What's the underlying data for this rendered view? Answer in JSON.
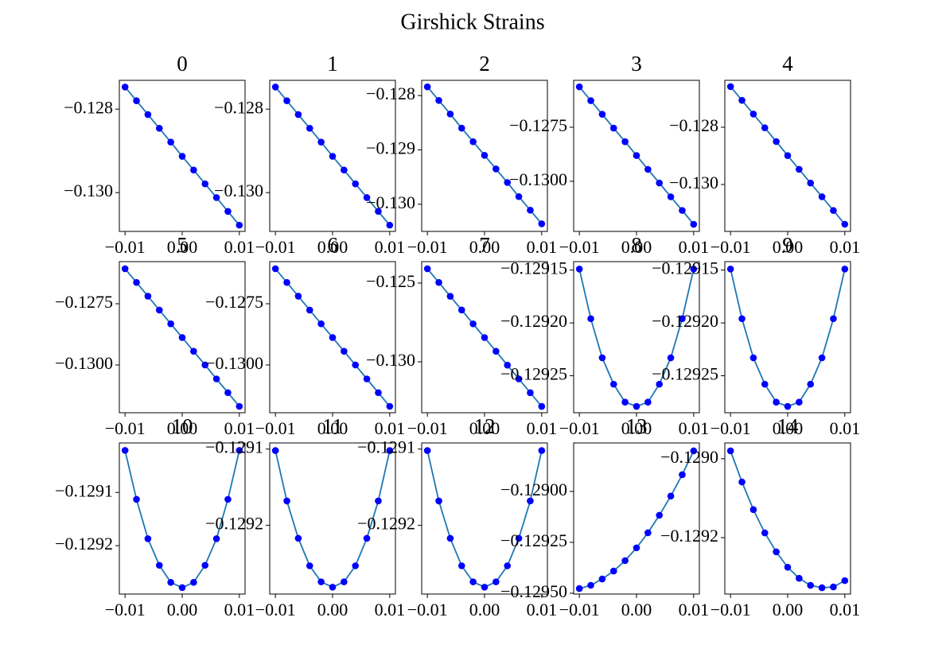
{
  "title": "Girshick Strains",
  "chart_data": [
    {
      "type": "line",
      "title": "0",
      "x": [
        -0.01,
        -0.008,
        -0.006,
        -0.004,
        -0.002,
        0,
        0.002,
        0.004,
        0.006,
        0.008,
        0.01
      ],
      "values": [
        -0.12747,
        -0.1278,
        -0.12813,
        -0.12846,
        -0.12879,
        -0.12913,
        -0.12946,
        -0.12979,
        -0.13012,
        -0.13045,
        -0.13078
      ],
      "color": "#1f77b4",
      "marker_color": "#0000ff",
      "xlim": [
        -0.011,
        0.011
      ],
      "ylim": [
        -0.13093,
        -0.12731
      ],
      "xticks": [
        {
          "value": -0.01,
          "label": "−0.01"
        },
        {
          "value": 0,
          "label": "0.00"
        },
        0.01
      ],
      "yticks": [
        {
          "value": -0.128,
          "label": "−0.128"
        },
        {
          "value": -0.13,
          "label": "−0.130"
        }
      ]
    },
    {
      "type": "line",
      "title": "1",
      "x": [
        -0.01,
        -0.008,
        -0.006,
        -0.004,
        -0.002,
        0,
        0.002,
        0.004,
        0.006,
        0.008,
        0.01
      ],
      "values": [
        -0.12747,
        -0.1278,
        -0.12813,
        -0.12846,
        -0.12879,
        -0.12913,
        -0.12946,
        -0.12979,
        -0.13012,
        -0.13045,
        -0.13078
      ],
      "color": "#1f77b4",
      "marker_color": "#0000ff",
      "xlim": [
        -0.011,
        0.011
      ],
      "ylim": [
        -0.13093,
        -0.12731
      ],
      "xticks": [
        {
          "value": -0.01,
          "label": "−0.01"
        },
        {
          "value": 0,
          "label": "0.00"
        },
        0.01
      ],
      "yticks": [
        {
          "value": -0.128,
          "label": "−0.128"
        },
        {
          "value": -0.13,
          "label": "−0.130"
        }
      ]
    },
    {
      "type": "line",
      "title": "2",
      "x": [
        -0.01,
        -0.008,
        -0.006,
        -0.004,
        -0.002,
        0,
        0.002,
        0.004,
        0.006,
        0.008,
        0.01
      ],
      "values": [
        -0.12784,
        -0.12809,
        -0.12834,
        -0.1286,
        -0.12885,
        -0.1291,
        -0.12935,
        -0.1296,
        -0.12986,
        -0.13011,
        -0.13036
      ],
      "color": "#1f77b4",
      "marker_color": "#0000ff",
      "xlim": [
        -0.011,
        0.011
      ],
      "ylim": [
        -0.1305,
        -0.12772
      ],
      "xticks": [
        {
          "value": -0.01,
          "label": "−0.01"
        },
        {
          "value": 0,
          "label": "0.00"
        },
        0.01
      ],
      "yticks": [
        {
          "value": -0.128,
          "label": "−0.128"
        },
        {
          "value": -0.129,
          "label": "−0.129"
        },
        {
          "value": -0.13,
          "label": "−0.130"
        }
      ]
    },
    {
      "type": "line",
      "title": "3",
      "x": [
        -0.01,
        -0.008,
        -0.006,
        -0.004,
        -0.002,
        0,
        0.002,
        0.004,
        0.006,
        0.008,
        0.01
      ],
      "values": [
        -0.12563,
        -0.12627,
        -0.1269,
        -0.12754,
        -0.12817,
        -0.12881,
        -0.12945,
        -0.13008,
        -0.13072,
        -0.13135,
        -0.13199
      ],
      "color": "#1f77b4",
      "marker_color": "#0000ff",
      "xlim": [
        -0.011,
        0.011
      ],
      "ylim": [
        -0.13232,
        -0.12533
      ],
      "xticks": [
        {
          "value": -0.01,
          "label": "−0.01"
        },
        {
          "value": 0,
          "label": "0.00"
        },
        0.01
      ],
      "yticks": [
        {
          "value": -0.1275,
          "label": "−0.1275"
        },
        {
          "value": -0.13,
          "label": "−0.1300"
        }
      ]
    },
    {
      "type": "line",
      "title": "4",
      "x": [
        -0.01,
        -0.008,
        -0.006,
        -0.004,
        -0.002,
        0,
        0.002,
        0.004,
        0.006,
        0.008,
        0.01
      ],
      "values": [
        -0.12658,
        -0.12706,
        -0.12754,
        -0.12802,
        -0.1285,
        -0.12899,
        -0.12947,
        -0.12995,
        -0.13043,
        -0.13091,
        -0.13139
      ],
      "color": "#1f77b4",
      "marker_color": "#0000ff",
      "xlim": [
        -0.011,
        0.011
      ],
      "ylim": [
        -0.13164,
        -0.12636
      ],
      "xticks": [
        {
          "value": -0.01,
          "label": "−0.01"
        },
        {
          "value": 0,
          "label": "0.00"
        },
        0.01
      ],
      "yticks": [
        {
          "value": -0.128,
          "label": "−0.128"
        },
        {
          "value": -0.13,
          "label": "−0.130"
        }
      ]
    },
    {
      "type": "line",
      "title": "5",
      "x": [
        -0.01,
        -0.008,
        -0.006,
        -0.004,
        -0.002,
        0,
        0.002,
        0.004,
        0.006,
        0.008,
        0.01
      ],
      "values": [
        -0.12607,
        -0.12663,
        -0.12719,
        -0.12776,
        -0.12832,
        -0.12888,
        -0.12944,
        -0.13,
        -0.13057,
        -0.13113,
        -0.13169
      ],
      "color": "#1f77b4",
      "marker_color": "#0000ff",
      "xlim": [
        -0.011,
        0.011
      ],
      "ylim": [
        -0.13195,
        -0.12578
      ],
      "xticks": [
        {
          "value": -0.01,
          "label": "−0.01"
        },
        {
          "value": 0,
          "label": "0.00"
        },
        0.01
      ],
      "yticks": [
        {
          "value": -0.1275,
          "label": "−0.1275"
        },
        {
          "value": -0.13,
          "label": "−0.1300"
        }
      ]
    },
    {
      "type": "line",
      "title": "6",
      "x": [
        -0.01,
        -0.008,
        -0.006,
        -0.004,
        -0.002,
        0,
        0.002,
        0.004,
        0.006,
        0.008,
        0.01
      ],
      "values": [
        -0.12607,
        -0.12663,
        -0.12719,
        -0.12776,
        -0.12832,
        -0.12888,
        -0.12944,
        -0.13,
        -0.13057,
        -0.13113,
        -0.13169
      ],
      "color": "#1f77b4",
      "marker_color": "#0000ff",
      "xlim": [
        -0.011,
        0.011
      ],
      "ylim": [
        -0.13195,
        -0.12578
      ],
      "xticks": [
        {
          "value": -0.01,
          "label": "−0.01"
        },
        {
          "value": 0,
          "label": "0.00"
        },
        0.01
      ],
      "yticks": [
        {
          "value": -0.1275,
          "label": "−0.1275"
        },
        {
          "value": -0.13,
          "label": "−0.1300"
        }
      ]
    },
    {
      "type": "line",
      "title": "7",
      "x": [
        -0.01,
        -0.008,
        -0.006,
        -0.004,
        -0.002,
        0,
        0.002,
        0.004,
        0.006,
        0.008,
        0.01
      ],
      "values": [
        -0.12409,
        -0.12496,
        -0.12584,
        -0.12671,
        -0.12759,
        -0.12846,
        -0.12933,
        -0.13021,
        -0.13108,
        -0.13196,
        -0.13283
      ],
      "color": "#1f77b4",
      "marker_color": "#0000ff",
      "xlim": [
        -0.011,
        0.011
      ],
      "ylim": [
        -0.13323,
        -0.12364
      ],
      "xticks": [
        {
          "value": -0.01,
          "label": "−0.01"
        },
        {
          "value": 0,
          "label": "0.00"
        },
        0.01
      ],
      "yticks": [
        {
          "value": -0.125,
          "label": "−0.125"
        },
        {
          "value": -0.13,
          "label": "−0.130"
        }
      ]
    },
    {
      "type": "line",
      "title": "8",
      "x": [
        -0.01,
        -0.008,
        -0.006,
        -0.004,
        -0.002,
        0,
        0.002,
        0.004,
        0.006,
        0.008,
        0.01
      ],
      "values": [
        -0.129149,
        -0.129196,
        -0.129233,
        -0.129258,
        -0.129275,
        -0.129279,
        -0.129275,
        -0.129258,
        -0.129233,
        -0.129196,
        -0.129149
      ],
      "color": "#1f77b4",
      "marker_color": "#0000ff",
      "xlim": [
        -0.011,
        0.011
      ],
      "ylim": [
        -0.129285,
        -0.129142
      ],
      "xticks": [
        {
          "value": -0.01,
          "label": "−0.01"
        },
        {
          "value": 0,
          "label": "0.00"
        },
        0.01
      ],
      "yticks": [
        {
          "value": -0.12915,
          "label": "−0.12915"
        },
        {
          "value": -0.1292,
          "label": "−0.12920"
        },
        {
          "value": -0.12925,
          "label": "−0.12925"
        }
      ]
    },
    {
      "type": "line",
      "title": "9",
      "x": [
        -0.01,
        -0.008,
        -0.006,
        -0.004,
        -0.002,
        0,
        0.002,
        0.004,
        0.006,
        0.008,
        0.01
      ],
      "values": [
        -0.129149,
        -0.129196,
        -0.129233,
        -0.129258,
        -0.129275,
        -0.129279,
        -0.129275,
        -0.129258,
        -0.129233,
        -0.129196,
        -0.129149
      ],
      "color": "#1f77b4",
      "marker_color": "#0000ff",
      "xlim": [
        -0.011,
        0.011
      ],
      "ylim": [
        -0.129285,
        -0.129142
      ],
      "xticks": [
        {
          "value": -0.01,
          "label": "−0.01"
        },
        {
          "value": 0,
          "label": "0.00"
        },
        0.01
      ],
      "yticks": [
        {
          "value": -0.12915,
          "label": "−0.12915"
        },
        {
          "value": -0.1292,
          "label": "−0.12920"
        },
        {
          "value": -0.12925,
          "label": "−0.12925"
        }
      ]
    },
    {
      "type": "line",
      "title": "10",
      "x": [
        -0.01,
        -0.008,
        -0.006,
        -0.004,
        -0.002,
        0,
        0.002,
        0.004,
        0.006,
        0.008,
        0.01
      ],
      "values": [
        -0.129021,
        -0.129113,
        -0.129187,
        -0.129237,
        -0.129269,
        -0.129279,
        -0.129269,
        -0.129237,
        -0.129187,
        -0.129113,
        -0.129021
      ],
      "color": "#1f77b4",
      "marker_color": "#0000ff",
      "xlim": [
        -0.011,
        0.011
      ],
      "ylim": [
        -0.129291,
        -0.129007
      ],
      "xticks": [
        {
          "value": -0.01,
          "label": "−0.01"
        },
        {
          "value": 0,
          "label": "0.00"
        },
        0.01
      ],
      "yticks": [
        {
          "value": -0.1291,
          "label": "−0.1291"
        },
        {
          "value": -0.1292,
          "label": "−0.1292"
        }
      ]
    },
    {
      "type": "line",
      "title": "11",
      "x": [
        -0.01,
        -0.008,
        -0.006,
        -0.004,
        -0.002,
        0,
        0.002,
        0.004,
        0.006,
        0.008,
        0.01
      ],
      "values": [
        -0.129102,
        -0.129168,
        -0.129217,
        -0.129253,
        -0.129274,
        -0.129281,
        -0.129274,
        -0.129253,
        -0.129217,
        -0.129168,
        -0.129102
      ],
      "color": "#1f77b4",
      "marker_color": "#0000ff",
      "xlim": [
        -0.011,
        0.011
      ],
      "ylim": [
        -0.12929,
        -0.129092
      ],
      "xticks": [
        {
          "value": -0.01,
          "label": "−0.01"
        },
        {
          "value": 0,
          "label": "0.00"
        },
        0.01
      ],
      "yticks": [
        {
          "value": -0.1291,
          "label": "−0.1291"
        },
        {
          "value": -0.1292,
          "label": "−0.1292"
        }
      ]
    },
    {
      "type": "line",
      "title": "12",
      "x": [
        -0.01,
        -0.008,
        -0.006,
        -0.004,
        -0.002,
        0,
        0.002,
        0.004,
        0.006,
        0.008,
        0.01
      ],
      "values": [
        -0.129102,
        -0.129168,
        -0.129217,
        -0.129253,
        -0.129274,
        -0.129281,
        -0.129274,
        -0.129253,
        -0.129217,
        -0.129168,
        -0.129102
      ],
      "color": "#1f77b4",
      "marker_color": "#0000ff",
      "xlim": [
        -0.011,
        0.011
      ],
      "ylim": [
        -0.12929,
        -0.129092
      ],
      "xticks": [
        {
          "value": -0.01,
          "label": "−0.01"
        },
        {
          "value": 0,
          "label": "0.00"
        },
        0.01
      ],
      "yticks": [
        {
          "value": -0.1291,
          "label": "−0.1291"
        },
        {
          "value": -0.1292,
          "label": "−0.1292"
        }
      ]
    },
    {
      "type": "line",
      "title": "13",
      "x": [
        -0.01,
        -0.008,
        -0.006,
        -0.004,
        -0.002,
        0,
        0.002,
        0.004,
        0.006,
        0.008,
        0.01
      ],
      "values": [
        -0.129477,
        -0.129461,
        -0.12943,
        -0.129391,
        -0.12934,
        -0.129277,
        -0.129203,
        -0.129117,
        -0.129023,
        -0.128918,
        -0.128801
      ],
      "color": "#1f77b4",
      "marker_color": "#0000ff",
      "xlim": [
        -0.011,
        0.011
      ],
      "ylim": [
        -0.129504,
        -0.128762
      ],
      "xticks": [
        {
          "value": -0.01,
          "label": "−0.01"
        },
        {
          "value": 0,
          "label": "0.00"
        },
        0.01
      ],
      "yticks": [
        {
          "value": -0.129,
          "label": "−0.12900"
        },
        {
          "value": -0.12925,
          "label": "−0.12925"
        },
        {
          "value": -0.1295,
          "label": "−0.12950"
        }
      ]
    },
    {
      "type": "line",
      "title": "14",
      "x": [
        -0.01,
        -0.008,
        -0.006,
        -0.004,
        -0.002,
        0,
        0.002,
        0.004,
        0.006,
        0.008,
        0.01
      ],
      "values": [
        -0.12898,
        -0.129059,
        -0.129129,
        -0.129188,
        -0.129236,
        -0.129275,
        -0.129303,
        -0.129321,
        -0.129327,
        -0.129325,
        -0.129309
      ],
      "color": "#1f77b4",
      "marker_color": "#0000ff",
      "xlim": [
        -0.011,
        0.011
      ],
      "ylim": [
        -0.129343,
        -0.12896
      ],
      "xticks": [
        {
          "value": -0.01,
          "label": "−0.01"
        },
        {
          "value": 0,
          "label": "0.00"
        },
        0.01
      ],
      "yticks": [
        {
          "value": -0.129,
          "label": "−0.1290"
        },
        {
          "value": -0.1292,
          "label": "−0.1292"
        }
      ]
    }
  ]
}
